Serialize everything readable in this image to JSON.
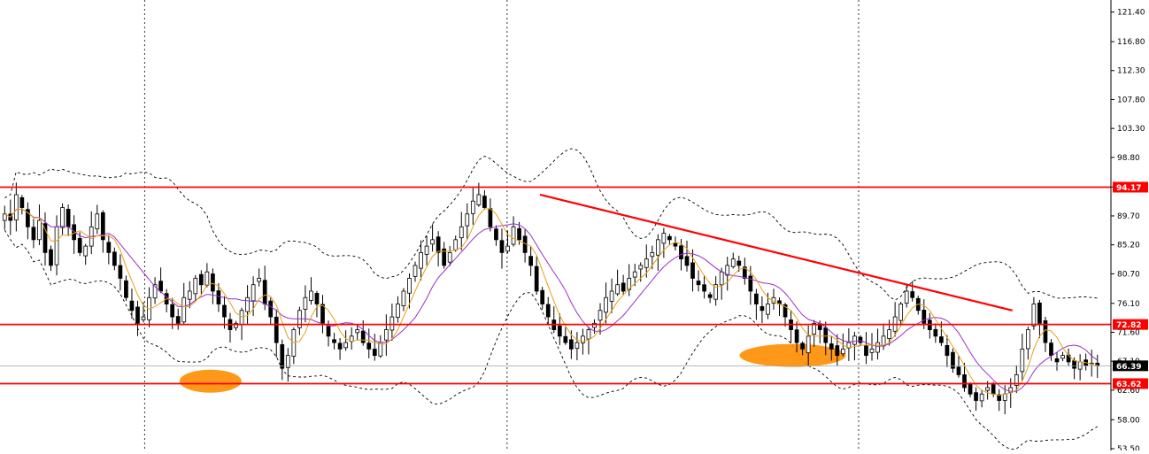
{
  "chart_data": {
    "type": "candlestick",
    "title": "",
    "xlabel": "",
    "ylabel": "",
    "ylim": [
      53.5,
      123.0
    ],
    "grid": false,
    "legend": "none",
    "y_ticks": [
      121.4,
      116.8,
      112.3,
      107.8,
      103.3,
      98.8,
      94.2,
      89.7,
      85.2,
      80.7,
      76.1,
      71.6,
      67.1,
      62.6,
      58.0,
      53.5
    ],
    "price_labels": [
      {
        "value": 94.17,
        "text": "94.17",
        "color": "#ff0000"
      },
      {
        "value": 72.82,
        "text": "72.82",
        "color": "#ff0000"
      },
      {
        "value": 66.39,
        "text": "66.39",
        "color": "#000000"
      },
      {
        "value": 63.62,
        "text": "63.62",
        "color": "#ff0000"
      }
    ],
    "horizontal_levels": [
      94.17,
      72.82,
      63.62
    ],
    "current_price": 66.39,
    "trendline": {
      "from": {
        "bar": 0.49,
        "value": 93.0
      },
      "to": {
        "bar": 0.92,
        "value": 75.0
      },
      "color": "#ff0000"
    },
    "period_separators": [
      0.13,
      0.46,
      0.78
    ],
    "bar_count": 190,
    "closes": [
      90,
      89,
      93,
      91,
      88,
      86,
      89,
      84,
      82,
      88,
      91,
      88,
      86,
      84,
      85,
      88,
      90,
      86,
      84,
      82,
      80,
      77,
      75,
      73,
      74,
      77,
      79,
      78,
      76,
      74,
      73,
      77,
      78,
      80,
      79,
      81,
      78,
      76,
      74,
      72,
      73,
      75,
      77,
      79,
      80,
      76,
      74,
      70,
      66,
      68,
      72,
      75,
      77,
      78,
      76,
      73,
      71,
      70,
      69,
      70,
      71,
      72,
      70,
      69,
      68,
      70,
      72,
      74,
      76,
      78,
      80,
      82,
      84,
      85,
      86,
      84,
      82,
      84,
      86,
      88,
      90,
      92,
      93,
      91,
      88,
      86,
      84,
      85,
      88,
      86,
      84,
      82,
      78,
      76,
      74,
      72,
      71,
      70,
      69,
      70,
      71,
      72,
      73,
      75,
      77,
      78,
      79,
      78,
      80,
      81,
      82,
      83,
      84,
      86,
      87,
      86,
      85,
      83,
      82,
      80,
      79,
      78,
      77,
      79,
      81,
      82,
      83,
      82,
      80,
      78,
      76,
      75,
      76,
      77,
      76,
      74,
      72,
      70,
      69,
      71,
      73,
      72,
      70,
      69,
      68,
      69,
      70,
      71,
      70,
      68,
      69,
      70,
      71,
      72,
      74,
      76,
      78,
      77,
      75,
      73,
      72,
      71,
      70,
      68,
      66,
      65,
      63,
      62,
      61,
      62,
      63,
      62,
      61,
      62,
      63,
      65,
      69,
      72,
      76,
      73,
      70,
      68,
      67,
      68,
      67,
      66,
      67,
      66.4,
      66.8,
      66.39
    ],
    "annotations": [
      {
        "shape": "ellipse",
        "near_bar": 0.19,
        "value": 64.0,
        "color": "#ff8c00"
      },
      {
        "shape": "ellipse",
        "near_bar": 0.72,
        "value": 68.0,
        "color": "#ff8c00"
      }
    ],
    "indicators": [
      "moving-average-fast",
      "moving-average-slow",
      "upper-envelope",
      "lower-envelope"
    ],
    "colors": {
      "bull": "#ffffff",
      "bear": "#000000",
      "fast_ma": "#e6a117",
      "slow_ma": "#9b30c8",
      "level": "#ff0000",
      "envelope": "#000000",
      "highlight": "#ff8c00"
    }
  }
}
